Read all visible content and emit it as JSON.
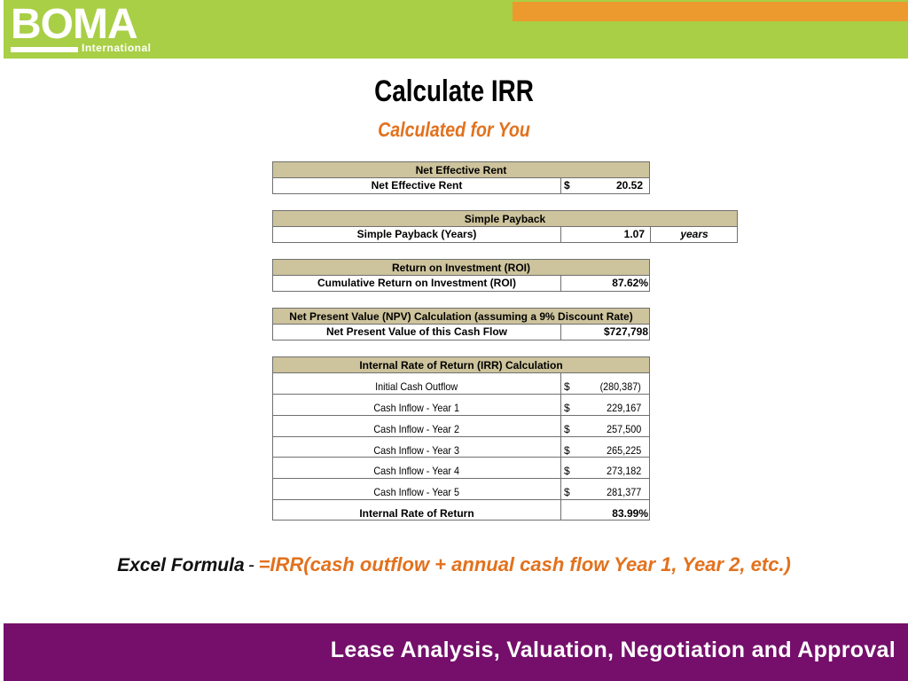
{
  "header": {
    "logo_main": "BOMA",
    "logo_sub": "International"
  },
  "title": "Calculate IRR",
  "subtitle": "Calculated for You",
  "tables": {
    "ner": {
      "header": "Net Effective Rent",
      "label": "Net Effective Rent",
      "currency": "$",
      "value": "20.52"
    },
    "payback": {
      "header": "Simple Payback",
      "label": "Simple Payback (Years)",
      "value": "1.07",
      "unit": "years"
    },
    "roi": {
      "header": "Return on Investment (ROI)",
      "label": "Cumulative Return on Investment (ROI)",
      "value": "87.62%"
    },
    "npv": {
      "header": "Net Present Value (NPV) Calculation (assuming a 9% Discount Rate)",
      "label": "Net Present Value of this Cash Flow",
      "value": "$727,798"
    },
    "irr": {
      "header": "Internal Rate of Return (IRR) Calculation",
      "rows": [
        {
          "label": "Initial Cash Outflow",
          "currency": "$",
          "value": "(280,387)"
        },
        {
          "label": "Cash Inflow - Year 1",
          "currency": "$",
          "value": "229,167"
        },
        {
          "label": "Cash Inflow - Year 2",
          "currency": "$",
          "value": "257,500"
        },
        {
          "label": "Cash Inflow - Year 3",
          "currency": "$",
          "value": "265,225"
        },
        {
          "label": "Cash Inflow - Year 4",
          "currency": "$",
          "value": "273,182"
        },
        {
          "label": "Cash Inflow - Year 5",
          "currency": "$",
          "value": "281,377"
        }
      ],
      "result_label": "Internal Rate of Return",
      "result_value": "83.99%"
    }
  },
  "formula": {
    "label": "Excel Formula",
    "dash": "-",
    "expression": "=IRR(cash outflow + annual cash flow Year 1, Year 2, etc.)"
  },
  "footer": {
    "text": "Lease Analysis, Valuation, Negotiation and Approval"
  },
  "colors": {
    "header_green": "#a8cf45",
    "header_orange": "#ec9a2e",
    "accent_orange": "#e2711d",
    "table_header": "#cdc39c",
    "footer_purple": "#750f6b"
  }
}
